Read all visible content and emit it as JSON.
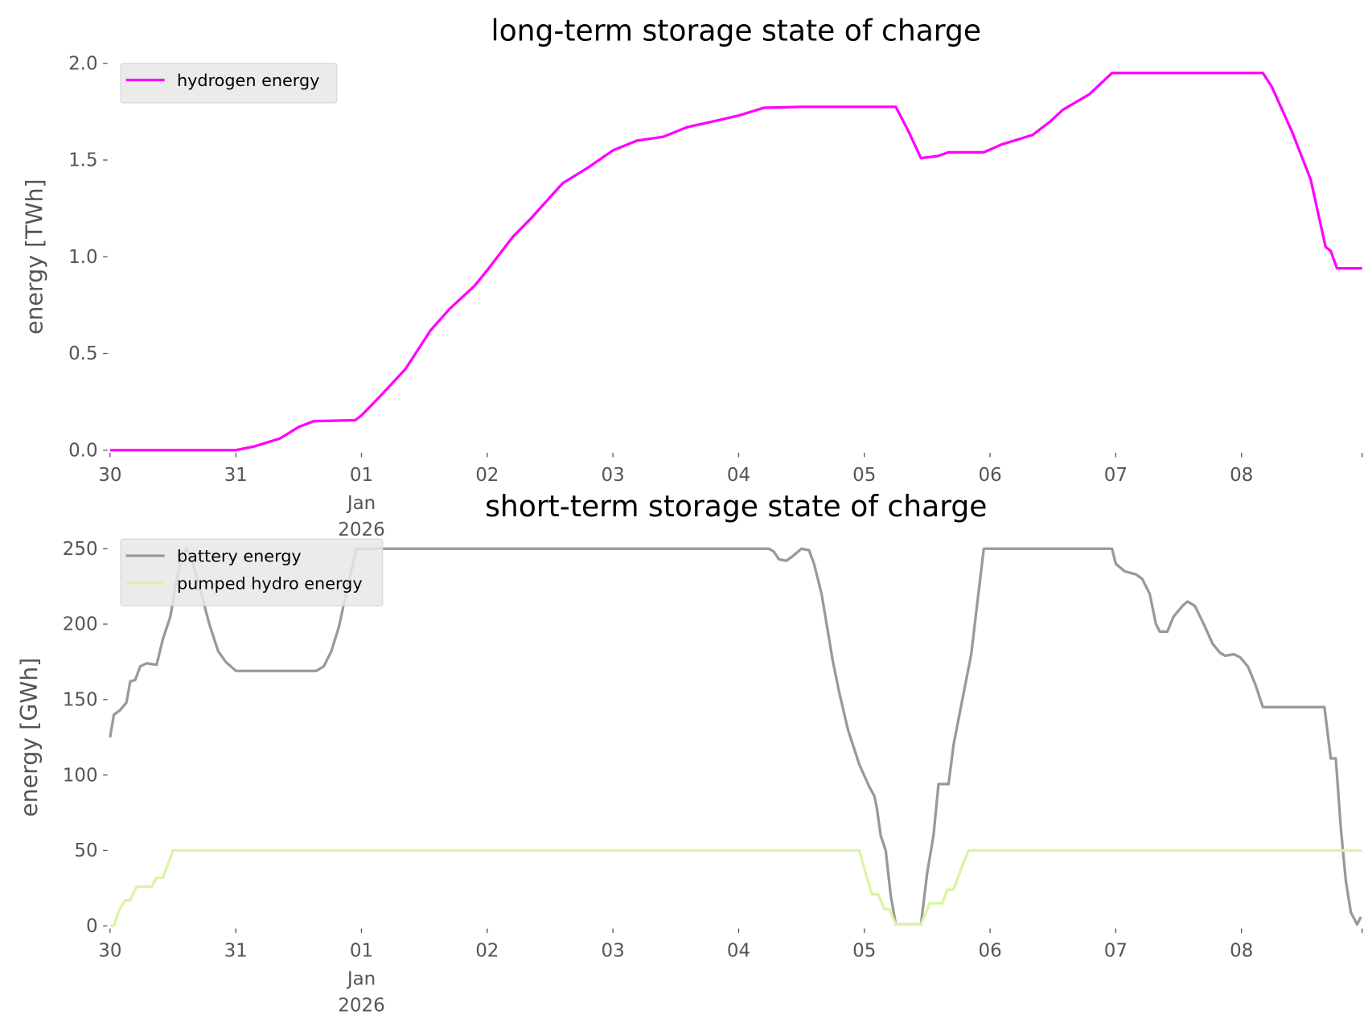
{
  "chart_data": [
    {
      "type": "line",
      "title": "long-term storage state of charge",
      "xlabel": "",
      "ylabel": "energy [TWh]",
      "x_unit": "days since Dec 30 2025 00:00",
      "xlim": [
        0,
        9.96
      ],
      "ylim": [
        0,
        2.0
      ],
      "yticks": [
        {
          "v": 0,
          "label": "0.0"
        },
        {
          "v": 0.5,
          "label": "0.5"
        },
        {
          "v": 1.0,
          "label": "1.0"
        },
        {
          "v": 1.5,
          "label": "1.5"
        },
        {
          "v": 2.0,
          "label": "2.0"
        }
      ],
      "xticks": [
        {
          "v": 0,
          "label": "30"
        },
        {
          "v": 1,
          "label": "31"
        },
        {
          "v": 2,
          "label": "01",
          "sub": [
            "Jan",
            "2026"
          ]
        },
        {
          "v": 3,
          "label": "02"
        },
        {
          "v": 4,
          "label": "03"
        },
        {
          "v": 5,
          "label": "04"
        },
        {
          "v": 6,
          "label": "05"
        },
        {
          "v": 7,
          "label": "06"
        },
        {
          "v": 8,
          "label": "07"
        },
        {
          "v": 9,
          "label": "08"
        }
      ],
      "legend_position": "top-left",
      "grid": false,
      "series": [
        {
          "name": "hydrogen energy",
          "color": "#ff00ff",
          "x": [
            0,
            1.0,
            1.15,
            1.35,
            1.5,
            1.62,
            1.95,
            2.0,
            2.15,
            2.35,
            2.55,
            2.7,
            2.9,
            3.0,
            3.2,
            3.35,
            3.6,
            3.8,
            4.0,
            4.19,
            4.4,
            4.59,
            4.8,
            5.0,
            5.2,
            5.5,
            6.0,
            6.25,
            6.35,
            6.45,
            6.58,
            6.67,
            6.95,
            7.09,
            7.34,
            7.48,
            7.58,
            7.79,
            7.97,
            9.17,
            9.24,
            9.4,
            9.55,
            9.67,
            9.71,
            9.76,
            9.96
          ],
          "y": [
            0,
            0,
            0.02,
            0.06,
            0.12,
            0.15,
            0.155,
            0.18,
            0.28,
            0.42,
            0.62,
            0.73,
            0.85,
            0.93,
            1.1,
            1.2,
            1.38,
            1.46,
            1.55,
            1.6,
            1.62,
            1.67,
            1.7,
            1.73,
            1.77,
            1.775,
            1.775,
            1.775,
            1.65,
            1.51,
            1.52,
            1.54,
            1.54,
            1.58,
            1.63,
            1.7,
            1.76,
            1.84,
            1.95,
            1.95,
            1.88,
            1.65,
            1.4,
            1.05,
            1.03,
            0.94,
            0.94
          ]
        }
      ]
    },
    {
      "type": "line",
      "title": "short-term storage state of charge",
      "xlabel": "",
      "ylabel": "energy [GWh]",
      "x_unit": "days since Dec 30 2025 00:00",
      "xlim": [
        0,
        9.96
      ],
      "ylim": [
        0,
        250
      ],
      "yticks": [
        {
          "v": 0,
          "label": "0"
        },
        {
          "v": 50,
          "label": "50"
        },
        {
          "v": 100,
          "label": "100"
        },
        {
          "v": 150,
          "label": "150"
        },
        {
          "v": 200,
          "label": "200"
        },
        {
          "v": 250,
          "label": "250"
        }
      ],
      "xticks": [
        {
          "v": 0,
          "label": "30"
        },
        {
          "v": 1,
          "label": "31"
        },
        {
          "v": 2,
          "label": "01",
          "sub": [
            "Jan",
            "2026"
          ]
        },
        {
          "v": 3,
          "label": "02"
        },
        {
          "v": 4,
          "label": "03"
        },
        {
          "v": 5,
          "label": "04"
        },
        {
          "v": 6,
          "label": "05"
        },
        {
          "v": 7,
          "label": "06"
        },
        {
          "v": 8,
          "label": "07"
        },
        {
          "v": 9,
          "label": "08"
        }
      ],
      "legend_position": "top-left",
      "grid": false,
      "series": [
        {
          "name": "battery energy",
          "color": "#999999",
          "x": [
            0,
            0.03,
            0.08,
            0.13,
            0.16,
            0.2,
            0.24,
            0.29,
            0.37,
            0.42,
            0.48,
            0.52,
            0.57,
            0.61,
            0.66,
            0.72,
            0.79,
            0.86,
            0.92,
            1.0,
            1.64,
            1.7,
            1.76,
            1.82,
            1.89,
            1.96,
            5.24,
            5.28,
            5.32,
            5.38,
            5.43,
            5.5,
            5.56,
            5.6,
            5.66,
            5.75,
            5.8,
            5.87,
            5.96,
            6.04,
            6.08,
            6.1,
            6.13,
            6.17,
            6.21,
            6.25,
            6.45,
            6.5,
            6.55,
            6.59,
            6.67,
            6.71,
            6.78,
            6.85,
            6.9,
            6.95,
            7.97,
            8.0,
            8.07,
            8.16,
            8.21,
            8.27,
            8.32,
            8.35,
            8.41,
            8.46,
            8.53,
            8.57,
            8.63,
            8.7,
            8.77,
            8.83,
            8.87,
            8.94,
            8.99,
            9.05,
            9.11,
            9.17,
            9.66,
            9.71,
            9.75,
            9.79,
            9.83,
            9.87,
            9.92,
            9.95
          ],
          "y": [
            125,
            140,
            143,
            148,
            162,
            163,
            172,
            174,
            173,
            190,
            205,
            225,
            245,
            250,
            240,
            222,
            200,
            182,
            175,
            169,
            169,
            172,
            182,
            198,
            225,
            250,
            250,
            248,
            243,
            242,
            245,
            250,
            249,
            240,
            220,
            175,
            155,
            130,
            107,
            92,
            86,
            78,
            60,
            50,
            20,
            1,
            1,
            35,
            60,
            94,
            94,
            120,
            150,
            180,
            215,
            250,
            250,
            240,
            235,
            233,
            230,
            220,
            200,
            195,
            195,
            205,
            212,
            215,
            212,
            200,
            187,
            181,
            179,
            180,
            178,
            172,
            160,
            145,
            145,
            111,
            111,
            65,
            30,
            9,
            1,
            6
          ]
        },
        {
          "name": "pumped hydro energy",
          "color": "#d9f5a0",
          "x": [
            0,
            0.03,
            0.07,
            0.12,
            0.16,
            0.21,
            0.33,
            0.37,
            0.42,
            0.47,
            0.5,
            5.96,
            6.01,
            6.06,
            6.11,
            6.16,
            6.2,
            6.25,
            6.45,
            6.52,
            6.62,
            6.66,
            6.71,
            6.78,
            6.83,
            9.96
          ],
          "y": [
            0,
            0,
            10,
            17,
            17,
            26,
            26,
            32,
            32,
            43,
            50,
            50,
            35,
            21,
            21,
            11,
            11,
            1,
            1,
            15,
            15,
            24,
            24,
            40,
            50,
            50
          ]
        }
      ]
    }
  ]
}
